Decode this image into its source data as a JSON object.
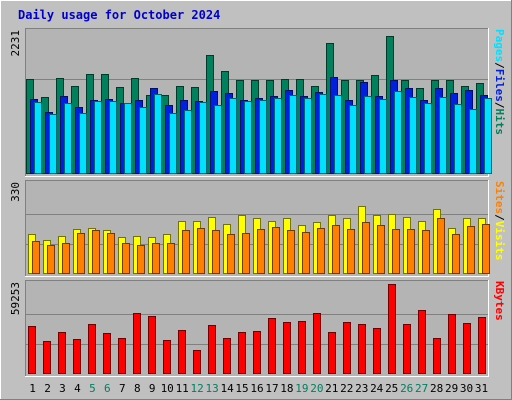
{
  "chart_data": {
    "type": "bar",
    "title": "Daily usage for October 2024",
    "categories": [
      "1",
      "2",
      "3",
      "4",
      "5",
      "6",
      "7",
      "8",
      "9",
      "10",
      "11",
      "12",
      "13",
      "14",
      "15",
      "16",
      "17",
      "18",
      "19",
      "20",
      "21",
      "22",
      "23",
      "24",
      "25",
      "26",
      "27",
      "28",
      "29",
      "30",
      "31"
    ],
    "weekend_days": [
      "5",
      "6",
      "12",
      "13",
      "19",
      "20",
      "26",
      "27"
    ],
    "panels": [
      {
        "id": "hits-panel",
        "ymax": 2231,
        "ymax_label": "2231",
        "right_label_parts": [
          "Pages",
          "/",
          "Files",
          "/",
          "Hits"
        ],
        "series": [
          {
            "name": "Hits",
            "color": "#00805c",
            "values": [
              1495,
              1205,
              1505,
              1380,
              1570,
              1570,
              1360,
              1505,
              1245,
              1245,
              1375,
              1360,
              1875,
              1625,
              1470,
              1475,
              1475,
              1485,
              1485,
              1390,
              2055,
              1480,
              1475,
              1550,
              2165,
              1470,
              1350,
              1480,
              1475,
              1390,
              1435
            ]
          },
          {
            "name": "Files",
            "color": "#0020e0",
            "values": [
              1185,
              980,
              1225,
              1060,
              1155,
              1175,
              1110,
              1165,
              1345,
              1090,
              1160,
              1140,
              1305,
              1280,
              1155,
              1195,
              1220,
              1320,
              1230,
              1290,
              1520,
              1170,
              1445,
              1230,
              1475,
              1345,
              1160,
              1355,
              1265,
              1320,
              1235
            ]
          },
          {
            "name": "Pages",
            "color": "#00e0ff",
            "values": [
              1135,
              935,
              1120,
              955,
              1150,
              1150,
              1110,
              1055,
              1255,
              965,
              1010,
              1130,
              1090,
              1195,
              1145,
              1155,
              1200,
              1245,
              1195,
              1250,
              1240,
              1085,
              1230,
              1185,
              1300,
              1215,
              1110,
              1205,
              1095,
              1015,
              1195
            ]
          }
        ]
      },
      {
        "id": "visits-panel",
        "ymax": 330,
        "ymax_label": "330",
        "right_label_parts": [
          "Sites",
          "/",
          "Visits"
        ],
        "series": [
          {
            "name": "Visits",
            "color": "#ffff00",
            "values": [
              145,
              125,
              138,
              165,
              170,
              160,
              135,
              140,
              135,
              145,
              195,
              195,
              210,
              185,
              215,
              205,
              193,
              205,
              180,
              190,
              215,
              205,
              250,
              215,
              220,
              210,
              195,
              240,
              170,
              205,
              205
            ]
          },
          {
            "name": "Sites",
            "color": "#ff8000",
            "values": [
              122,
              105,
              115,
              150,
              160,
              150,
              115,
              107,
              115,
              115,
              160,
              170,
              160,
              145,
              152,
              165,
              172,
              162,
              155,
              170,
              180,
              165,
              190,
              180,
              165,
              165,
              160,
              205,
              145,
              175,
              185
            ]
          }
        ]
      },
      {
        "id": "kbytes-panel",
        "ymax": 59253,
        "ymax_label": "59253",
        "right_label_parts": [
          "KBytes"
        ],
        "series": [
          {
            "name": "KBytes",
            "color": "#ff0000",
            "values": [
              31900,
              21500,
              27600,
              22800,
              32600,
              27300,
              23700,
              39900,
              38000,
              22300,
              28700,
              16000,
              32200,
              23800,
              27700,
              28000,
              36700,
              34100,
              34600,
              40000,
              27900,
              34000,
              32900,
              30200,
              59000,
              32600,
              41900,
              23800,
              39200,
              33800,
              37800
            ]
          }
        ]
      }
    ]
  }
}
